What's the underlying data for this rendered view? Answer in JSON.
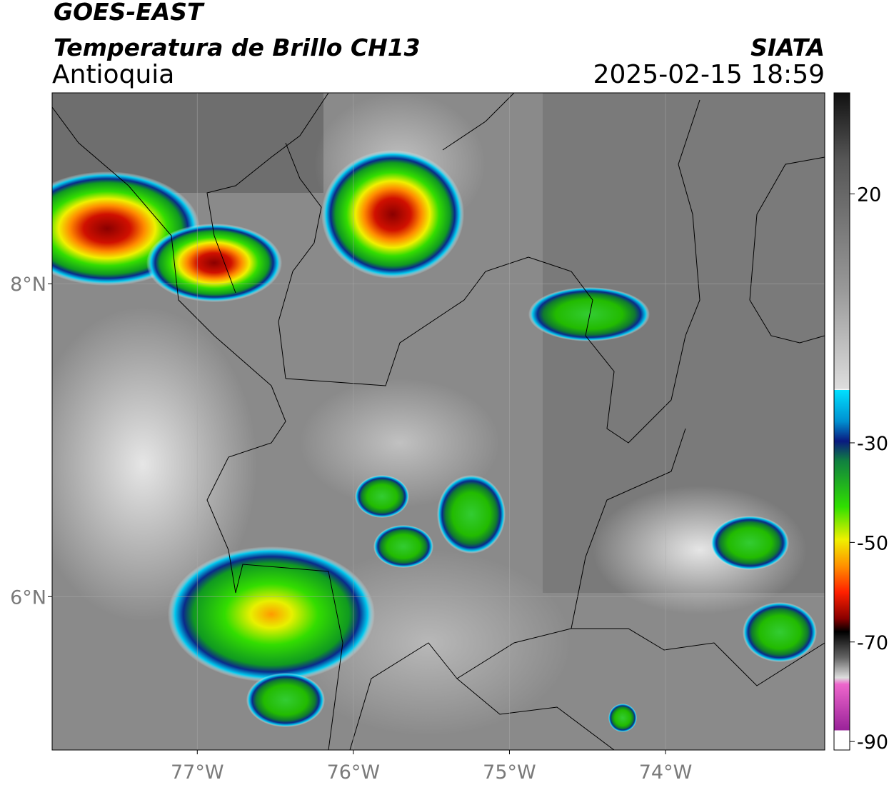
{
  "header": {
    "satellite": "GOES-EAST",
    "product": "Temperatura de Brillo CH13",
    "region": "Antioquia",
    "source": "SIATA",
    "datetime": "2025-02-15 18:59"
  },
  "map": {
    "xlim": [
      -77.93,
      -72.98
    ],
    "ylim": [
      5.02,
      9.22
    ],
    "xticks": [
      {
        "value": -77,
        "label": "77°W"
      },
      {
        "value": -76,
        "label": "76°W"
      },
      {
        "value": -75,
        "label": "75°W"
      },
      {
        "value": -74,
        "label": "74°W"
      }
    ],
    "yticks": [
      {
        "value": 8,
        "label": "8°N"
      },
      {
        "value": 6,
        "label": "6°N"
      }
    ],
    "grid": true
  },
  "colorbar": {
    "lim": [
      -91.7,
      40.3
    ],
    "ticks": [
      20,
      -30,
      -50,
      -70,
      -90
    ]
  }
}
